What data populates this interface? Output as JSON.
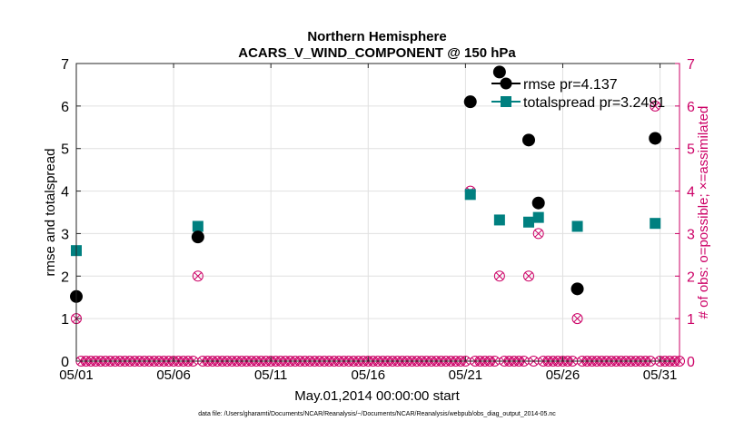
{
  "chart_data": {
    "type": "scatter",
    "title": "Northern Hemisphere",
    "subtitle": "ACARS_V_WIND_COMPONENT @ 150 hPa",
    "xlabel": "May.01,2014 00:00:00 start",
    "ylabel_left": "rmse and totalspread",
    "ylabel_right": "# of obs: o=possible; ×=assimilated",
    "footer": "data file: /Users/gharamti/Documents/NCAR/Reanalysis/~/Documents/NCAR/Reanalysis/webpub/obs_diag_output_2014-05.nc",
    "xlim": [
      1,
      32
    ],
    "ylim_left": [
      0,
      7
    ],
    "ylim_right": [
      0,
      7
    ],
    "x_ticks": [
      1,
      6,
      11,
      16,
      21,
      26,
      31
    ],
    "x_tick_labels": [
      "05/01",
      "05/06",
      "05/11",
      "05/16",
      "05/21",
      "05/26",
      "05/31"
    ],
    "y_ticks_left": [
      0,
      1,
      2,
      3,
      4,
      5,
      6,
      7
    ],
    "y_ticks_right": [
      0,
      1,
      2,
      3,
      4,
      5,
      6,
      7
    ],
    "grid": true,
    "legend_position": "top-right",
    "colors": {
      "rmse": "#000000",
      "totalspread": "#008080",
      "obs": "#cc0066"
    },
    "series": [
      {
        "name": "rmse pr=4.137",
        "key": "rmse",
        "points": [
          [
            1.0,
            1.52
          ],
          [
            7.25,
            2.92
          ],
          [
            21.25,
            6.1
          ],
          [
            22.75,
            6.8
          ],
          [
            24.25,
            5.2
          ],
          [
            24.75,
            3.72
          ],
          [
            26.75,
            1.7
          ],
          [
            30.75,
            5.24
          ]
        ]
      },
      {
        "name": "totalspread pr=3.2491",
        "key": "totalspread",
        "points": [
          [
            1.0,
            2.6
          ],
          [
            7.25,
            3.17
          ],
          [
            21.25,
            3.92
          ],
          [
            22.75,
            3.32
          ],
          [
            24.25,
            3.27
          ],
          [
            24.75,
            3.38
          ],
          [
            26.75,
            3.17
          ],
          [
            30.75,
            3.24
          ]
        ]
      },
      {
        "name": "obs",
        "key": "obs",
        "axis": "right",
        "points": [
          [
            1.0,
            1
          ],
          [
            7.25,
            2
          ],
          [
            21.25,
            4
          ],
          [
            22.75,
            2
          ],
          [
            24.25,
            2
          ],
          [
            24.75,
            3
          ],
          [
            26.75,
            1
          ],
          [
            30.75,
            6
          ]
        ],
        "zero_step": 0.25
      }
    ]
  }
}
